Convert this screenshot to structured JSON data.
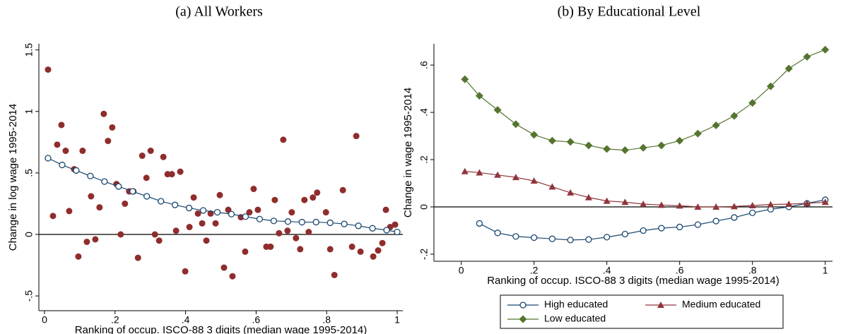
{
  "chart_data": [
    {
      "type": "scatter",
      "title": "(a) All Workers",
      "x_label": "Ranking of occup. ISCO-88 3 digits (median wage 1995-2014)",
      "y_label": "Change in log wage 1995-2014",
      "xlim": [
        -0.016,
        1.016
      ],
      "ylim": [
        -0.62,
        1.55
      ],
      "xticks": [
        0,
        {
          "value": 0.2,
          "label": ".2"
        },
        {
          "value": 0.4,
          "label": ".4"
        },
        {
          "value": 0.6,
          "label": ".6"
        },
        {
          "value": 0.8,
          "label": ".8"
        },
        1
      ],
      "yticks": [
        {
          "value": -0.5,
          "label": "-.5"
        },
        0,
        {
          "value": 0.5,
          "label": ".5"
        },
        1,
        1.5
      ],
      "hline": 0,
      "series": [
        {
          "color": "#8f2d2d",
          "marker": "circle-filled",
          "line": false,
          "x": [
            0.01,
            0.024,
            0.036,
            0.048,
            0.06,
            0.07,
            0.084,
            0.096,
            0.108,
            0.12,
            0.132,
            0.144,
            0.156,
            0.168,
            0.18,
            0.192,
            0.204,
            0.216,
            0.228,
            0.24,
            0.252,
            0.265,
            0.277,
            0.289,
            0.301,
            0.313,
            0.325,
            0.337,
            0.349,
            0.361,
            0.373,
            0.385,
            0.399,
            0.411,
            0.423,
            0.435,
            0.447,
            0.459,
            0.471,
            0.485,
            0.497,
            0.509,
            0.521,
            0.533,
            0.557,
            0.569,
            0.581,
            0.593,
            0.605,
            0.629,
            0.641,
            0.653,
            0.665,
            0.677,
            0.689,
            0.701,
            0.713,
            0.725,
            0.737,
            0.749,
            0.761,
            0.773,
            0.798,
            0.81,
            0.822,
            0.846,
            0.872,
            0.884,
            0.896,
            0.932,
            0.946,
            0.958,
            0.968,
            0.98,
            0.994
          ],
          "values": [
            1.34,
            0.15,
            0.73,
            0.89,
            0.68,
            0.19,
            0.53,
            -0.18,
            0.68,
            -0.06,
            0.31,
            -0.04,
            0.22,
            0.98,
            0.76,
            0.87,
            0.41,
            0.0,
            0.25,
            0.35,
            0.35,
            -0.19,
            0.64,
            0.46,
            0.68,
            0.0,
            -0.05,
            0.63,
            0.49,
            0.49,
            0.03,
            0.51,
            -0.3,
            0.06,
            0.3,
            0.17,
            0.09,
            -0.05,
            0.17,
            0.09,
            0.32,
            -0.27,
            0.2,
            -0.34,
            0.14,
            -0.14,
            0.18,
            0.37,
            0.2,
            -0.1,
            -0.1,
            0.28,
            0.01,
            0.77,
            0.03,
            0.18,
            -0.03,
            -0.12,
            0.28,
            0.02,
            0.3,
            0.34,
            0.18,
            -0.12,
            -0.33,
            0.36,
            -0.1,
            0.8,
            -0.14,
            -0.18,
            -0.13,
            -0.07,
            0.2,
            0.06,
            0.08
          ]
        },
        {
          "color": "#1a476f",
          "marker": "circle-hollow",
          "line": true,
          "x": [
            0.01,
            0.05,
            0.09,
            0.13,
            0.17,
            0.21,
            0.25,
            0.29,
            0.33,
            0.37,
            0.41,
            0.45,
            0.49,
            0.53,
            0.57,
            0.61,
            0.65,
            0.69,
            0.73,
            0.77,
            0.81,
            0.85,
            0.89,
            0.93,
            0.97,
            1.0
          ],
          "values": [
            0.62,
            0.565,
            0.52,
            0.475,
            0.43,
            0.39,
            0.35,
            0.31,
            0.27,
            0.24,
            0.215,
            0.195,
            0.18,
            0.165,
            0.145,
            0.125,
            0.11,
            0.105,
            0.1,
            0.1,
            0.095,
            0.085,
            0.07,
            0.05,
            0.035,
            0.02
          ]
        }
      ]
    },
    {
      "type": "line",
      "title": "(b) By Educational Level",
      "x_label": "Ranking of occup. ISCO-88 3 digits (median wage 1995-2014)",
      "y_label": "Change in wage 1995-2014",
      "xlim": [
        -0.075,
        1.02
      ],
      "ylim": [
        -0.23,
        0.69
      ],
      "xticks": [
        0,
        {
          "value": 0.2,
          "label": ".2"
        },
        {
          "value": 0.4,
          "label": ".4"
        },
        {
          "value": 0.6,
          "label": ".6"
        },
        {
          "value": 0.8,
          "label": ".8"
        },
        1
      ],
      "yticks": [
        {
          "value": -0.2,
          "label": "-.2"
        },
        0,
        {
          "value": 0.2,
          "label": ".2"
        },
        {
          "value": 0.4,
          "label": ".4"
        },
        {
          "value": 0.6,
          "label": ".6"
        }
      ],
      "hline": 0,
      "legend": "bottom",
      "x": [
        0.01,
        0.05,
        0.1,
        0.15,
        0.2,
        0.25,
        0.3,
        0.35,
        0.4,
        0.45,
        0.5,
        0.55,
        0.6,
        0.65,
        0.7,
        0.75,
        0.8,
        0.85,
        0.9,
        0.95,
        1.0
      ],
      "series": [
        {
          "name": "High educated",
          "color": "#1a476f",
          "marker": "circle-hollow",
          "line": true,
          "values": [
            null,
            -0.07,
            -0.11,
            -0.125,
            -0.13,
            -0.135,
            -0.14,
            -0.138,
            -0.128,
            -0.115,
            -0.1,
            -0.09,
            -0.085,
            -0.075,
            -0.06,
            -0.045,
            -0.025,
            -0.01,
            0.0,
            0.015,
            0.03
          ]
        },
        {
          "name": "Medium educated",
          "color": "#90353b",
          "marker": "triangle",
          "line": true,
          "values": [
            0.15,
            0.145,
            0.135,
            0.125,
            0.11,
            0.085,
            0.06,
            0.04,
            0.025,
            0.02,
            0.012,
            0.008,
            0.005,
            0.0,
            0.0,
            0.002,
            0.006,
            0.01,
            0.012,
            0.015,
            0.02
          ]
        },
        {
          "name": "Low educated",
          "color": "#55752f",
          "marker": "diamond",
          "line": true,
          "values": [
            0.54,
            0.47,
            0.41,
            0.35,
            0.305,
            0.28,
            0.275,
            0.26,
            0.245,
            0.24,
            0.25,
            0.26,
            0.28,
            0.31,
            0.345,
            0.385,
            0.44,
            0.51,
            0.585,
            0.635,
            0.665
          ]
        }
      ]
    }
  ]
}
